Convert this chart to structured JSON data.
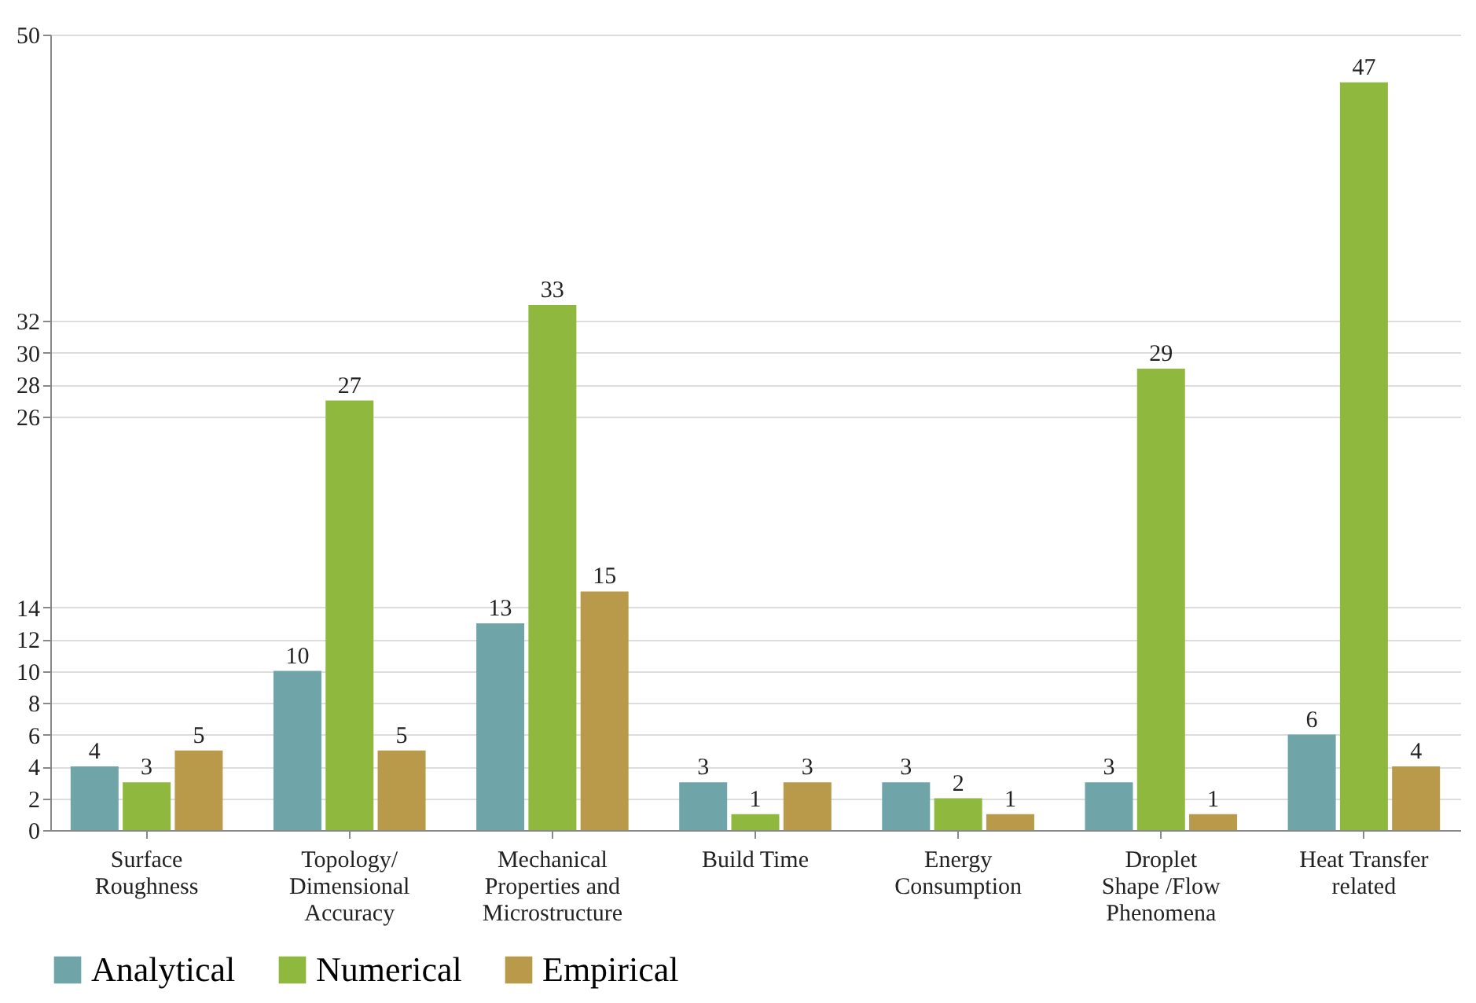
{
  "chart_data": {
    "type": "bar",
    "categories": [
      "Surface\nRoughness",
      "Topology/\nDimensional\nAccuracy",
      "Mechanical\nProperties and\nMicrostructure",
      "Build Time",
      "Energy\nConsumption",
      "Droplet\nShape /Flow\nPhenomena",
      "Heat Transfer\nrelated"
    ],
    "series": [
      {
        "name": "Analytical",
        "color": "#6fa5a8",
        "values": [
          4,
          10,
          13,
          3,
          3,
          3,
          6
        ]
      },
      {
        "name": "Numerical",
        "color": "#8fb83e",
        "values": [
          3,
          27,
          33,
          1,
          2,
          29,
          47
        ]
      },
      {
        "name": "Empirical",
        "color": "#b89a4a",
        "values": [
          5,
          5,
          15,
          3,
          1,
          1,
          4
        ]
      }
    ],
    "ylim": [
      0,
      50
    ],
    "yticks": [
      0,
      2,
      4,
      6,
      8,
      10,
      12,
      14,
      26,
      28,
      30,
      32,
      50
    ],
    "grid": "y",
    "legend": "bottom",
    "data_labels": true
  }
}
